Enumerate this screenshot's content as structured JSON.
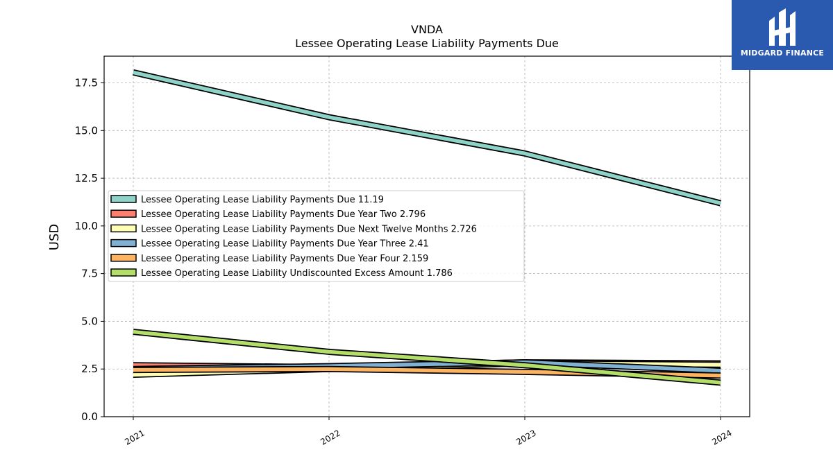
{
  "brand": {
    "name": "MIDGARD FINANCE",
    "color": "#2a5ab0"
  },
  "chart_data": {
    "type": "line",
    "title": "VNDA",
    "subtitle": "Lessee Operating Lease Liability Payments Due",
    "xlabel": "",
    "ylabel": "USD",
    "categories": [
      "2021",
      "2022",
      "2023",
      "2024"
    ],
    "ylim": [
      0,
      18.9
    ],
    "yticks": [
      "0.0",
      "2.5",
      "5.0",
      "7.5",
      "10.0",
      "12.5",
      "15.0",
      "17.5"
    ],
    "grid": true,
    "legend_position": "center-left",
    "series": [
      {
        "name": "Lessee Operating Lease Liability Payments Due",
        "legend_value": "11.19",
        "color": "#8dd3c7",
        "values": [
          18.05,
          15.7,
          13.8,
          11.19
        ]
      },
      {
        "name": "Lessee Operating Lease Liability Payments Due Year Two",
        "legend_value": "2.796",
        "color": "#fb8072",
        "values": [
          2.7,
          2.6,
          2.85,
          2.796
        ]
      },
      {
        "name": "Lessee Operating Lease Liability Payments Due Next Twelve Months",
        "legend_value": "2.726",
        "color": "#ffffb3",
        "values": [
          2.2,
          2.5,
          2.8,
          2.726
        ]
      },
      {
        "name": "Lessee Operating Lease Liability Payments Due Year Three",
        "legend_value": "2.41",
        "color": "#80b1d3",
        "values": [
          2.5,
          2.65,
          2.85,
          2.41
        ]
      },
      {
        "name": "Lessee Operating Lease Liability Payments Due Year Four",
        "legend_value": "2.159",
        "color": "#fdb462",
        "values": [
          2.45,
          2.5,
          2.35,
          2.159
        ]
      },
      {
        "name": "Lessee Operating Lease Liability Undiscounted Excess Amount",
        "legend_value": "1.786",
        "color": "#b3de69",
        "values": [
          4.45,
          3.4,
          2.7,
          1.786
        ]
      }
    ]
  }
}
